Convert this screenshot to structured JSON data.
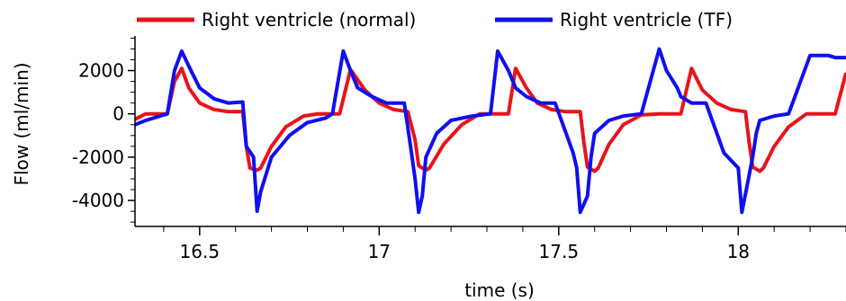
{
  "chart_data": {
    "type": "line",
    "title": "",
    "xlabel": "time (s)",
    "ylabel": "Flow (ml/min)",
    "xlim": [
      16.32,
      18.3
    ],
    "ylim": [
      -5200,
      3600
    ],
    "x_ticks": [
      16.5,
      17,
      17.5,
      18
    ],
    "x_tick_labels": [
      "16.5",
      "17",
      "17.5",
      "18"
    ],
    "y_ticks": [
      2000,
      0,
      -2000,
      -4000
    ],
    "y_tick_labels": [
      "2000",
      "0",
      "-2000",
      "-4000"
    ],
    "grid": false,
    "legend_position": "top",
    "series": [
      {
        "name": "Right ventricle (normal)",
        "color": "#e8141b",
        "x": [
          16.32,
          16.35,
          16.37,
          16.41,
          16.43,
          16.45,
          16.47,
          16.5,
          16.54,
          16.58,
          16.62,
          16.63,
          16.64,
          16.66,
          16.67,
          16.7,
          16.74,
          16.79,
          16.83,
          16.86,
          16.89,
          16.92,
          16.96,
          17.0,
          17.04,
          17.08,
          17.1,
          17.11,
          17.13,
          17.14,
          17.18,
          17.23,
          17.28,
          17.33,
          17.36,
          17.38,
          17.41,
          17.44,
          17.48,
          17.52,
          17.56,
          17.57,
          17.58,
          17.6,
          17.61,
          17.64,
          17.68,
          17.73,
          17.78,
          17.81,
          17.84,
          17.87,
          17.9,
          17.94,
          17.98,
          18.02,
          18.03,
          18.04,
          18.06,
          18.07,
          18.1,
          18.14,
          18.19,
          18.23,
          18.27,
          18.3
        ],
        "values": [
          -250,
          0,
          0,
          0,
          1500,
          2100,
          1200,
          500,
          200,
          100,
          100,
          -1500,
          -2500,
          -2600,
          -2500,
          -1500,
          -600,
          -100,
          0,
          0,
          0,
          2050,
          1100,
          500,
          200,
          100,
          -1200,
          -2400,
          -2600,
          -2500,
          -1400,
          -500,
          0,
          0,
          0,
          2100,
          1200,
          500,
          200,
          100,
          100,
          -1300,
          -2450,
          -2650,
          -2500,
          -1400,
          -500,
          -50,
          0,
          0,
          0,
          2100,
          1100,
          500,
          200,
          100,
          -1300,
          -2450,
          -2650,
          -2500,
          -1500,
          -600,
          0,
          0,
          0,
          1900
        ]
      },
      {
        "name": "Right ventricle (TF)",
        "color": "#1010ee",
        "x": [
          16.32,
          16.35,
          16.41,
          16.43,
          16.45,
          16.47,
          16.5,
          16.54,
          16.58,
          16.62,
          16.63,
          16.65,
          16.66,
          16.67,
          16.7,
          16.75,
          16.8,
          16.85,
          16.87,
          16.9,
          16.92,
          16.94,
          16.98,
          17.02,
          17.07,
          17.09,
          17.1,
          17.11,
          17.12,
          17.13,
          17.16,
          17.2,
          17.26,
          17.31,
          17.33,
          17.36,
          17.38,
          17.41,
          17.45,
          17.49,
          17.54,
          17.55,
          17.56,
          17.58,
          17.59,
          17.6,
          17.64,
          17.68,
          17.73,
          17.78,
          17.8,
          17.83,
          17.84,
          17.87,
          17.91,
          17.96,
          18.0,
          18.01,
          18.02,
          18.04,
          18.05,
          18.06,
          18.1,
          18.14,
          18.2,
          18.25,
          18.27,
          18.3
        ],
        "values": [
          -500,
          -300,
          0,
          2000,
          2900,
          2200,
          1200,
          700,
          500,
          550,
          -1500,
          -2000,
          -4500,
          -3600,
          -2000,
          -1000,
          -400,
          -200,
          0,
          2900,
          2000,
          1200,
          800,
          500,
          500,
          -1800,
          -3000,
          -4550,
          -3800,
          -2000,
          -900,
          -300,
          -100,
          0,
          2900,
          2000,
          1200,
          800,
          500,
          500,
          -1800,
          -2500,
          -4550,
          -3800,
          -2000,
          -900,
          -300,
          -100,
          0,
          3000,
          2000,
          1200,
          800,
          500,
          500,
          -1800,
          -2500,
          -4550,
          -3700,
          -2000,
          -900,
          -300,
          -100,
          0,
          2700,
          2700,
          2600,
          2600
        ]
      }
    ]
  }
}
